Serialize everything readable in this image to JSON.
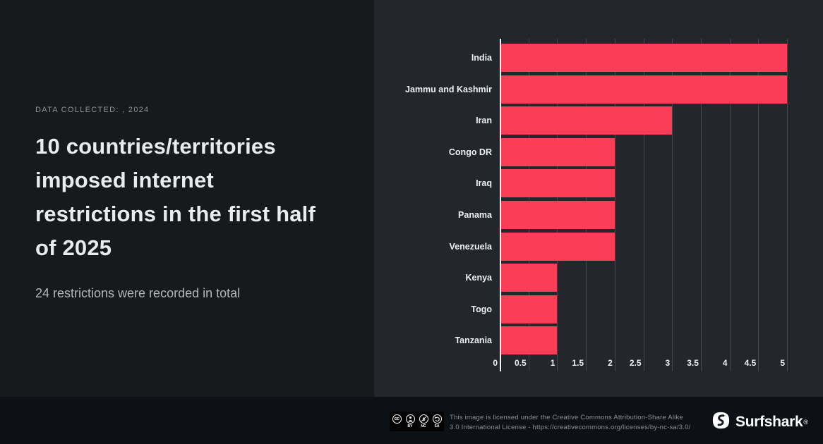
{
  "intro": {
    "eyebrow": "DATA COLLECTED: , 2024",
    "title_lines": [
      "10 countries/territories",
      "imposed internet",
      "restrictions in the first half",
      "of 2025"
    ],
    "subtitle": "24 restrictions were recorded in total"
  },
  "chart_data": {
    "type": "bar",
    "orientation": "horizontal",
    "categories": [
      "India",
      "Jammu and Kashmir",
      "Iran",
      "Congo DR",
      "Iraq",
      "Panama",
      "Venezuela",
      "Kenya",
      "Togo",
      "Tanzania"
    ],
    "values": [
      5,
      5,
      3,
      2,
      2,
      2,
      2,
      1,
      1,
      1
    ],
    "xlim": [
      0,
      5
    ],
    "xticks": [
      0,
      0.5,
      1,
      1.5,
      2,
      2.5,
      3,
      3.5,
      4,
      4.5,
      5
    ],
    "grid": true,
    "legend": "none",
    "bar_color": "#fc3d58"
  },
  "footer": {
    "license_line1": "This image is licensed under the Creative Commons Attribution-Share Alike",
    "license_line2": "3.0 International License - https://creativecommons.org/licenses/by-nc-sa/3.0/",
    "cc_badge_labels": [
      "BY",
      "NC",
      "SA"
    ],
    "brand_name": "Surfshark",
    "registered_mark": "®"
  },
  "colors": {
    "left_bg": "#17191d",
    "chart_bg": "#23262b",
    "footer_bg": "#0d1014",
    "bar": "#fc3d58",
    "grid_line": "#44484e",
    "axis_line": "#f2f3f4"
  }
}
